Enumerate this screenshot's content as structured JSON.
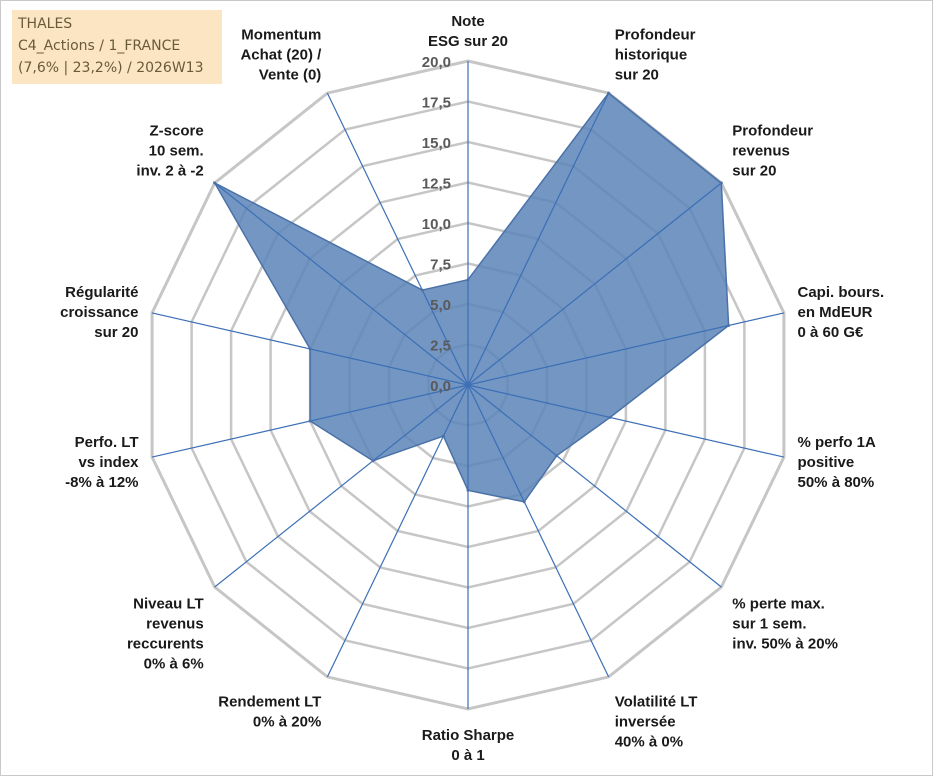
{
  "info": {
    "company": "THALES",
    "category": "C4_Actions / 1_FRANCE",
    "details": "(7,6% | 23,2%) / 2026W13"
  },
  "colors": {
    "fill": "#5b84b8",
    "stroke": "#4a72a8",
    "grid": "#c6c6c6",
    "spoke": "#3c6fb6",
    "box": "#fbe5c2"
  },
  "chart_data": {
    "type": "radar",
    "rmin": 0,
    "rmax": 20,
    "tick_step": 2.5,
    "tick_labels": [
      "0,0",
      "2,5",
      "5,0",
      "7,5",
      "10,0",
      "12,5",
      "15,0",
      "17,5",
      "20,0"
    ],
    "axes": [
      {
        "label": [
          "Note",
          "ESG sur 20"
        ],
        "value": 6.5
      },
      {
        "label": [
          "Profondeur",
          "historique",
          "sur 20"
        ],
        "value": 20.0
      },
      {
        "label": [
          "Profondeur",
          "revenus",
          "sur 20"
        ],
        "value": 20.0
      },
      {
        "label": [
          "Capi. bours.",
          "en MdEUR",
          "0 à 60 G€"
        ],
        "value": 16.5
      },
      {
        "label": [
          "% perfo 1A",
          "positive",
          "50% à 80%"
        ],
        "value": 9.0
      },
      {
        "label": [
          "% perte max.",
          "sur 1 sem.",
          "inv. 50% à 20%"
        ],
        "value": 7.0
      },
      {
        "label": [
          "Volatilité LT",
          "inversée",
          "40% à 0%"
        ],
        "value": 8.0
      },
      {
        "label": [
          "Ratio Sharpe",
          "0 à 1"
        ],
        "value": 6.5
      },
      {
        "label": [
          "Rendement LT",
          "0% à 20%"
        ],
        "value": 3.5
      },
      {
        "label": [
          "Niveau LT",
          "revenus",
          "reccurents",
          "0% à 6%"
        ],
        "value": 7.5
      },
      {
        "label": [
          "Perfo. LT",
          "vs index",
          "-8% à 12%"
        ],
        "value": 10.0
      },
      {
        "label": [
          "Régularité",
          "croissance",
          "sur 20"
        ],
        "value": 10.0
      },
      {
        "label": [
          "Z-score",
          "10 sem.",
          "inv. 2 à -2"
        ],
        "value": 20.0
      },
      {
        "label": [
          "Momentum",
          "Achat (20) /",
          "Vente (0)"
        ],
        "value": 6.5
      }
    ]
  }
}
